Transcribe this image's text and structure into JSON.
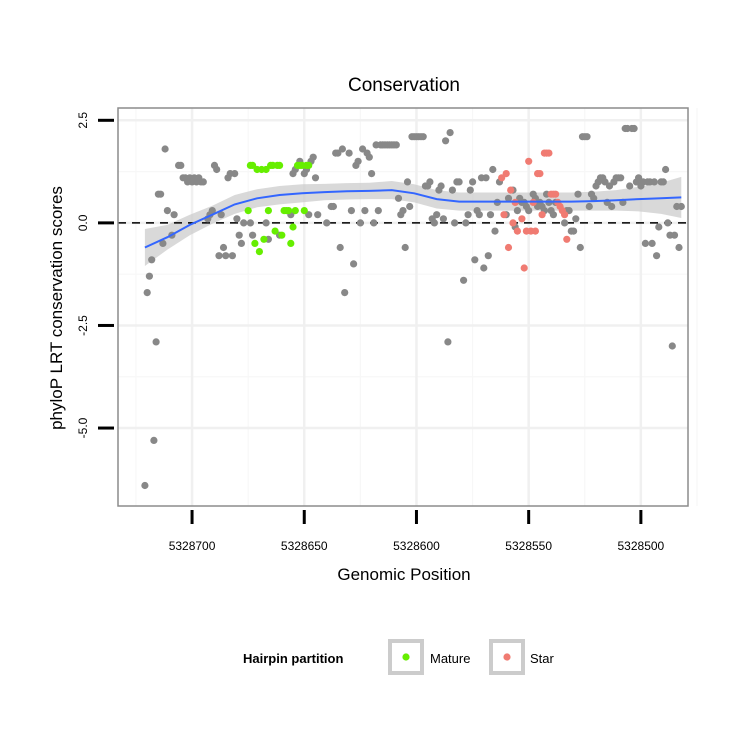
{
  "chart_data": {
    "type": "scatter",
    "title": "Conservation",
    "xlabel": "Genomic Position",
    "ylabel": "phyloP LRT conservation scores",
    "x_reversed": true,
    "xlim": [
      5328733,
      5328479
    ],
    "ylim": [
      -6.9,
      2.8
    ],
    "x_ticks": [
      5328700,
      5328650,
      5328600,
      5328550,
      5328500
    ],
    "y_ticks": [
      -5.0,
      -2.5,
      0.0,
      2.5
    ],
    "y_tick_labels": [
      "-5.0",
      "-2.5",
      "0.0",
      "2.5"
    ],
    "reference_line": {
      "y": 0,
      "style": "dashed"
    },
    "grid": true,
    "legend": {
      "title": "Hairpin partition",
      "placement": "bottom",
      "entries": [
        "Mature",
        "Star"
      ]
    },
    "colors": {
      "other": "#888888",
      "Mature": "#66ee00",
      "Star": "#f07b72",
      "smooth": "#3366ff",
      "ribbon": "#cccccc",
      "panel_border": "#8c8c8c"
    },
    "series": [
      {
        "name": "",
        "color_key": "other",
        "points": [
          [
            5328721,
            -6.4
          ],
          [
            5328720,
            -1.7
          ],
          [
            5328719,
            -1.3
          ],
          [
            5328718,
            -0.9
          ],
          [
            5328717,
            -5.3
          ],
          [
            5328716,
            -2.9
          ],
          [
            5328715,
            0.7
          ],
          [
            5328714,
            0.7
          ],
          [
            5328713,
            -0.5
          ],
          [
            5328712,
            1.8
          ],
          [
            5328711,
            0.3
          ],
          [
            5328709,
            -0.3
          ],
          [
            5328708,
            0.2
          ],
          [
            5328706,
            1.4
          ],
          [
            5328705,
            1.4
          ],
          [
            5328704,
            1.1
          ],
          [
            5328703,
            1.1
          ],
          [
            5328702,
            1.0
          ],
          [
            5328701,
            1.1
          ],
          [
            5328700,
            1.0
          ],
          [
            5328699,
            1.1
          ],
          [
            5328698,
            1.0
          ],
          [
            5328697,
            1.1
          ],
          [
            5328696,
            1.0
          ],
          [
            5328695,
            1.0
          ],
          [
            5328693,
            0.1
          ],
          [
            5328692,
            0.2
          ],
          [
            5328691,
            0.3
          ],
          [
            5328690,
            1.4
          ],
          [
            5328689,
            1.3
          ],
          [
            5328688,
            -0.8
          ],
          [
            5328687,
            0.2
          ],
          [
            5328686,
            -0.6
          ],
          [
            5328685,
            -0.8
          ],
          [
            5328684,
            1.1
          ],
          [
            5328683,
            1.2
          ],
          [
            5328682,
            -0.8
          ],
          [
            5328681,
            1.2
          ],
          [
            5328680,
            0.1
          ],
          [
            5328679,
            -0.3
          ],
          [
            5328678,
            -0.5
          ],
          [
            5328677,
            0.0
          ],
          [
            5328674,
            0.0
          ],
          [
            5328673,
            -0.3
          ],
          [
            5328667,
            0.0
          ],
          [
            5328666,
            -0.4
          ],
          [
            5328661,
            -0.3
          ],
          [
            5328656,
            0.2
          ],
          [
            5328655,
            1.2
          ],
          [
            5328654,
            1.3
          ],
          [
            5328652,
            1.5
          ],
          [
            5328650,
            1.2
          ],
          [
            5328649,
            1.3
          ],
          [
            5328648,
            0.2
          ],
          [
            5328647,
            1.5
          ],
          [
            5328646,
            1.6
          ],
          [
            5328645,
            1.1
          ],
          [
            5328644,
            0.2
          ],
          [
            5328640,
            0.0
          ],
          [
            5328638,
            0.4
          ],
          [
            5328637,
            0.4
          ],
          [
            5328636,
            1.7
          ],
          [
            5328635,
            1.7
          ],
          [
            5328634,
            -0.6
          ],
          [
            5328633,
            1.8
          ],
          [
            5328632,
            -1.7
          ],
          [
            5328630,
            1.7
          ],
          [
            5328629,
            0.3
          ],
          [
            5328628,
            -1.0
          ],
          [
            5328627,
            1.4
          ],
          [
            5328626,
            1.5
          ],
          [
            5328625,
            0.0
          ],
          [
            5328624,
            1.8
          ],
          [
            5328623,
            0.3
          ],
          [
            5328622,
            1.7
          ],
          [
            5328621,
            1.6
          ],
          [
            5328620,
            1.2
          ],
          [
            5328619,
            0.0
          ],
          [
            5328618,
            1.9
          ],
          [
            5328617,
            0.3
          ],
          [
            5328616,
            1.9
          ],
          [
            5328615,
            1.9
          ],
          [
            5328614,
            1.9
          ],
          [
            5328613,
            1.9
          ],
          [
            5328612,
            1.9
          ],
          [
            5328611,
            1.9
          ],
          [
            5328610,
            1.9
          ],
          [
            5328609,
            1.9
          ],
          [
            5328608,
            0.6
          ],
          [
            5328607,
            0.2
          ],
          [
            5328606,
            0.3
          ],
          [
            5328605,
            -0.6
          ],
          [
            5328604,
            1.0
          ],
          [
            5328603,
            0.4
          ],
          [
            5328602,
            2.1
          ],
          [
            5328601,
            2.1
          ],
          [
            5328600,
            2.1
          ],
          [
            5328599,
            2.1
          ],
          [
            5328598,
            2.1
          ],
          [
            5328597,
            2.1
          ],
          [
            5328596,
            0.9
          ],
          [
            5328595,
            0.9
          ],
          [
            5328594,
            1.0
          ],
          [
            5328593,
            0.1
          ],
          [
            5328592,
            0.0
          ],
          [
            5328591,
            0.2
          ],
          [
            5328590,
            0.8
          ],
          [
            5328589,
            0.9
          ],
          [
            5328588,
            0.1
          ],
          [
            5328587,
            2.0
          ],
          [
            5328586,
            -2.9
          ],
          [
            5328585,
            2.2
          ],
          [
            5328584,
            0.8
          ],
          [
            5328583,
            0.0
          ],
          [
            5328582,
            1.0
          ],
          [
            5328581,
            1.0
          ],
          [
            5328579,
            -1.4
          ],
          [
            5328578,
            0.0
          ],
          [
            5328577,
            0.2
          ],
          [
            5328576,
            0.8
          ],
          [
            5328575,
            1.0
          ],
          [
            5328574,
            -0.9
          ],
          [
            5328573,
            0.3
          ],
          [
            5328572,
            0.2
          ],
          [
            5328571,
            1.1
          ],
          [
            5328570,
            -1.1
          ],
          [
            5328569,
            1.1
          ],
          [
            5328568,
            -0.8
          ],
          [
            5328567,
            0.2
          ],
          [
            5328566,
            1.3
          ],
          [
            5328565,
            -0.2
          ],
          [
            5328564,
            0.5
          ],
          [
            5328563,
            1.0
          ],
          [
            5328560,
            0.2
          ],
          [
            5328559,
            0.6
          ],
          [
            5328557,
            0.8
          ],
          [
            5328556,
            -0.1
          ],
          [
            5328555,
            0.3
          ],
          [
            5328554,
            0.6
          ],
          [
            5328553,
            0.5
          ],
          [
            5328552,
            0.5
          ],
          [
            5328551,
            0.4
          ],
          [
            5328550,
            0.3
          ],
          [
            5328548,
            0.7
          ],
          [
            5328547,
            0.6
          ],
          [
            5328546,
            0.4
          ],
          [
            5328545,
            0.5
          ],
          [
            5328544,
            0.4
          ],
          [
            5328543,
            0.3
          ],
          [
            5328542,
            0.7
          ],
          [
            5328541,
            0.5
          ],
          [
            5328540,
            0.3
          ],
          [
            5328539,
            0.2
          ],
          [
            5328538,
            0.5
          ],
          [
            5328534,
            0.0
          ],
          [
            5328533,
            0.3
          ],
          [
            5328532,
            0.3
          ],
          [
            5328531,
            -0.2
          ],
          [
            5328530,
            -0.2
          ],
          [
            5328529,
            0.1
          ],
          [
            5328528,
            0.7
          ],
          [
            5328527,
            -0.6
          ],
          [
            5328526,
            2.1
          ],
          [
            5328525,
            2.1
          ],
          [
            5328524,
            2.1
          ],
          [
            5328523,
            0.4
          ],
          [
            5328522,
            0.7
          ],
          [
            5328521,
            0.6
          ],
          [
            5328520,
            0.9
          ],
          [
            5328519,
            1.0
          ],
          [
            5328518,
            1.1
          ],
          [
            5328517,
            1.1
          ],
          [
            5328516,
            1.0
          ],
          [
            5328515,
            0.5
          ],
          [
            5328514,
            0.9
          ],
          [
            5328513,
            0.4
          ],
          [
            5328512,
            1.0
          ],
          [
            5328511,
            1.1
          ],
          [
            5328510,
            1.1
          ],
          [
            5328509,
            1.1
          ],
          [
            5328508,
            0.5
          ],
          [
            5328507,
            2.3
          ],
          [
            5328506,
            2.3
          ],
          [
            5328505,
            0.9
          ],
          [
            5328504,
            2.3
          ],
          [
            5328503,
            2.3
          ],
          [
            5328502,
            1.0
          ],
          [
            5328501,
            1.1
          ],
          [
            5328500,
            0.9
          ],
          [
            5328499,
            1.0
          ],
          [
            5328498,
            -0.5
          ],
          [
            5328497,
            1.0
          ],
          [
            5328496,
            1.0
          ],
          [
            5328495,
            -0.5
          ],
          [
            5328494,
            1.0
          ],
          [
            5328493,
            -0.8
          ],
          [
            5328492,
            -0.1
          ],
          [
            5328491,
            1.0
          ],
          [
            5328490,
            1.0
          ],
          [
            5328489,
            1.3
          ],
          [
            5328488,
            0.0
          ],
          [
            5328487,
            -0.3
          ],
          [
            5328486,
            -3.0
          ],
          [
            5328485,
            -0.3
          ],
          [
            5328484,
            0.4
          ],
          [
            5328483,
            -0.6
          ],
          [
            5328482,
            0.4
          ]
        ]
      },
      {
        "name": "Mature",
        "color_key": "Mature",
        "points": [
          [
            5328675,
            0.3
          ],
          [
            5328674,
            1.4
          ],
          [
            5328673,
            1.4
          ],
          [
            5328672,
            -0.5
          ],
          [
            5328671,
            1.3
          ],
          [
            5328670,
            -0.7
          ],
          [
            5328669,
            1.3
          ],
          [
            5328668,
            -0.4
          ],
          [
            5328667,
            1.3
          ],
          [
            5328666,
            0.3
          ],
          [
            5328665,
            1.4
          ],
          [
            5328664,
            1.4
          ],
          [
            5328663,
            -0.2
          ],
          [
            5328662,
            1.4
          ],
          [
            5328661,
            1.4
          ],
          [
            5328660,
            -0.3
          ],
          [
            5328659,
            0.3
          ],
          [
            5328658,
            0.3
          ],
          [
            5328657,
            0.3
          ],
          [
            5328656,
            -0.5
          ],
          [
            5328655,
            -0.1
          ],
          [
            5328654,
            0.3
          ],
          [
            5328653,
            1.4
          ],
          [
            5328652,
            1.4
          ],
          [
            5328651,
            1.4
          ],
          [
            5328650,
            0.3
          ],
          [
            5328649,
            1.4
          ],
          [
            5328648,
            1.4
          ]
        ]
      },
      {
        "name": "Star",
        "color_key": "Star",
        "points": [
          [
            5328562,
            1.1
          ],
          [
            5328561,
            0.2
          ],
          [
            5328560,
            1.2
          ],
          [
            5328559,
            -0.6
          ],
          [
            5328558,
            0.8
          ],
          [
            5328557,
            0.0
          ],
          [
            5328556,
            0.5
          ],
          [
            5328555,
            -0.2
          ],
          [
            5328553,
            0.1
          ],
          [
            5328552,
            -1.1
          ],
          [
            5328551,
            -0.2
          ],
          [
            5328550,
            1.5
          ],
          [
            5328549,
            -0.2
          ],
          [
            5328548,
            0.5
          ],
          [
            5328547,
            -0.2
          ],
          [
            5328546,
            1.2
          ],
          [
            5328545,
            1.2
          ],
          [
            5328544,
            0.2
          ],
          [
            5328543,
            1.7
          ],
          [
            5328542,
            1.7
          ],
          [
            5328541,
            1.7
          ],
          [
            5328540,
            0.7
          ],
          [
            5328539,
            0.7
          ],
          [
            5328538,
            0.7
          ],
          [
            5328537,
            0.5
          ],
          [
            5328536,
            0.4
          ],
          [
            5328535,
            0.3
          ],
          [
            5328534,
            0.2
          ],
          [
            5328533,
            -0.4
          ]
        ]
      }
    ],
    "smooth": {
      "x": [
        5328721,
        5328711,
        5328701,
        5328691,
        5328681,
        5328671,
        5328661,
        5328651,
        5328641,
        5328631,
        5328621,
        5328611,
        5328601,
        5328591,
        5328581,
        5328571,
        5328561,
        5328551,
        5328541,
        5328531,
        5328521,
        5328511,
        5328501,
        5328491,
        5328482
      ],
      "y": [
        -0.6,
        -0.35,
        -0.05,
        0.2,
        0.45,
        0.6,
        0.68,
        0.72,
        0.75,
        0.77,
        0.78,
        0.8,
        0.72,
        0.58,
        0.52,
        0.52,
        0.52,
        0.52,
        0.52,
        0.52,
        0.53,
        0.55,
        0.58,
        0.6,
        0.62
      ],
      "lower": [
        -1.05,
        -0.65,
        -0.3,
        -0.02,
        0.22,
        0.38,
        0.45,
        0.5,
        0.55,
        0.57,
        0.58,
        0.58,
        0.5,
        0.35,
        0.3,
        0.3,
        0.3,
        0.3,
        0.3,
        0.3,
        0.3,
        0.3,
        0.28,
        0.22,
        0.12
      ],
      "upper": [
        -0.15,
        -0.05,
        0.2,
        0.42,
        0.68,
        0.82,
        0.9,
        0.94,
        0.95,
        0.97,
        0.98,
        1.02,
        0.94,
        0.8,
        0.74,
        0.74,
        0.74,
        0.74,
        0.74,
        0.74,
        0.76,
        0.8,
        0.88,
        0.98,
        1.12
      ]
    }
  }
}
